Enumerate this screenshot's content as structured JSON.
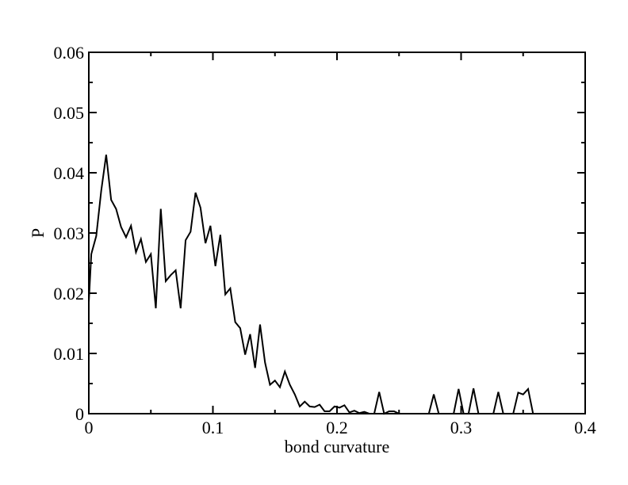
{
  "chart_data": {
    "type": "line",
    "title": "",
    "xlabel": "bond curvature",
    "ylabel": "P",
    "xlim": [
      0,
      0.4
    ],
    "ylim": [
      0,
      0.06
    ],
    "x_ticks": [
      0,
      0.1,
      0.2,
      0.3,
      0.4
    ],
    "x_tick_labels": [
      "0",
      "0.1",
      "0.2",
      "0.3",
      "0.4"
    ],
    "y_ticks": [
      0,
      0.01,
      0.02,
      0.03,
      0.04,
      0.05,
      0.06
    ],
    "y_tick_labels": [
      "0",
      "0.01",
      "0.02",
      "0.03",
      "0.04",
      "0.05",
      "0.06"
    ],
    "grid": false,
    "line_color": "#000000",
    "series": [
      {
        "x": [
          0,
          0.002,
          0.006,
          0.01,
          0.014,
          0.018,
          0.022,
          0.026,
          0.03,
          0.034,
          0.038,
          0.042,
          0.046,
          0.05,
          0.054,
          0.058,
          0.062,
          0.066,
          0.07,
          0.074,
          0.078,
          0.082,
          0.086,
          0.09,
          0.094,
          0.098,
          0.102,
          0.106,
          0.11,
          0.114,
          0.118,
          0.122,
          0.126,
          0.13,
          0.134,
          0.138,
          0.142,
          0.146,
          0.15,
          0.154,
          0.158,
          0.162,
          0.166,
          0.17,
          0.174,
          0.178,
          0.182,
          0.186,
          0.19,
          0.194,
          0.198,
          0.202,
          0.206,
          0.21,
          0.214,
          0.218,
          0.222,
          0.226,
          0.23,
          0.234,
          0.238,
          0.242,
          0.246,
          0.25,
          0.254,
          0.258,
          0.262,
          0.266,
          0.27,
          0.274,
          0.278,
          0.282,
          0.286,
          0.29,
          0.294,
          0.298,
          0.302,
          0.306,
          0.31,
          0.314,
          0.318,
          0.322,
          0.326,
          0.33,
          0.334,
          0.338,
          0.342,
          0.346,
          0.35,
          0.354,
          0.358,
          0.362
        ],
        "values": [
          0.0185,
          0.0265,
          0.0295,
          0.037,
          0.043,
          0.0355,
          0.034,
          0.031,
          0.0293,
          0.0312,
          0.0268,
          0.029,
          0.0252,
          0.0265,
          0.0175,
          0.034,
          0.022,
          0.023,
          0.0238,
          0.0175,
          0.0288,
          0.0302,
          0.0367,
          0.0342,
          0.0283,
          0.0312,
          0.0245,
          0.0297,
          0.0198,
          0.0208,
          0.0152,
          0.0142,
          0.0098,
          0.0132,
          0.0076,
          0.0148,
          0.0085,
          0.0048,
          0.0055,
          0.0044,
          0.007,
          0.0048,
          0.0032,
          0.0012,
          0.002,
          0.0012,
          0.0011,
          0.0015,
          0.0004,
          0.0004,
          0.0012,
          0.001,
          0.0014,
          0.0002,
          0.0005,
          0.0001,
          0.0003,
          0.0,
          0.0,
          0.0036,
          0.0,
          0.0004,
          0.0004,
          0.0,
          0.0,
          0.0,
          0.0,
          0.0,
          0.0,
          0.0,
          0.0032,
          0.0,
          0.0,
          0.0,
          0.0,
          0.0041,
          0.0,
          0.0,
          0.0042,
          0.0,
          0.0,
          0.0,
          0.0,
          0.0036,
          0.0,
          0.0,
          0.0,
          0.0035,
          0.0032,
          0.0041,
          0.0,
          0.0
        ]
      }
    ]
  }
}
